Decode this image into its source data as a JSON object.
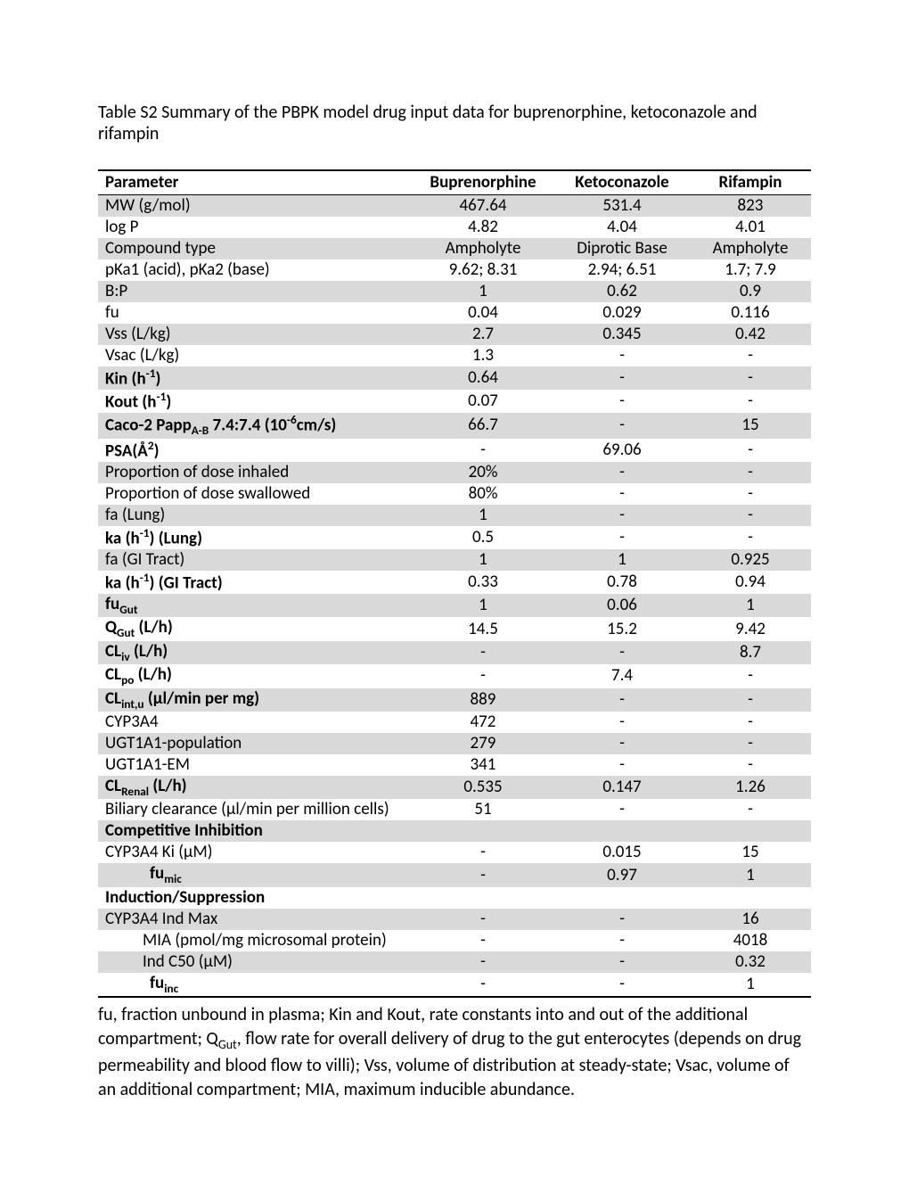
{
  "title": "Table S2 Summary of the PBPK model drug input data for buprenorphine, ketoconazole and rifampin",
  "colors": {
    "shade": "#d9d9d9",
    "border": "#000000",
    "background": "#ffffff",
    "text": "#000000"
  },
  "typography": {
    "family": "Calibri",
    "title_pt": 15,
    "body_pt": 14.5,
    "footnote_pt": 15
  },
  "columns": {
    "param": "Parameter",
    "a": "Buprenorphine",
    "b": "Ketoconazole",
    "c": "Rifampin"
  },
  "rows": [
    {
      "shaded": true,
      "bold": false,
      "indent": 0,
      "param_html": "MW (g/mol)",
      "a": "467.64",
      "b": "531.4",
      "c": "823"
    },
    {
      "shaded": false,
      "bold": false,
      "indent": 0,
      "param_html": "log P",
      "a": "4.82",
      "b": "4.04",
      "c": "4.01"
    },
    {
      "shaded": true,
      "bold": false,
      "indent": 0,
      "param_html": "Compound type",
      "a": "Ampholyte",
      "b": "Diprotic Base",
      "c": "Ampholyte"
    },
    {
      "shaded": false,
      "bold": false,
      "indent": 0,
      "param_html": "pKa1 (acid), pKa2 (base)",
      "a": "9.62; 8.31",
      "b": "2.94; 6.51",
      "c": "1.7; 7.9"
    },
    {
      "shaded": true,
      "bold": false,
      "indent": 0,
      "param_html": "B:P",
      "a": "1",
      "b": "0.62",
      "c": "0.9"
    },
    {
      "shaded": false,
      "bold": false,
      "indent": 0,
      "param_html": "fu",
      "a": "0.04",
      "b": "0.029",
      "c": "0.116"
    },
    {
      "shaded": true,
      "bold": false,
      "indent": 0,
      "param_html": "Vss (L/kg)",
      "a": "2.7",
      "b": "0.345",
      "c": "0.42"
    },
    {
      "shaded": false,
      "bold": false,
      "indent": 0,
      "param_html": "Vsac (L/kg)",
      "a": "1.3",
      "b": "-",
      "c": "-"
    },
    {
      "shaded": true,
      "bold": true,
      "indent": 0,
      "param_html": "Kin (h<sup>-1</sup>)",
      "a": "0.64",
      "b": "-",
      "c": "-"
    },
    {
      "shaded": false,
      "bold": true,
      "indent": 0,
      "param_html": "Kout (h<sup>-1</sup>)",
      "a": "0.07",
      "b": "-",
      "c": "-"
    },
    {
      "shaded": true,
      "bold": true,
      "indent": 0,
      "param_html": "Caco-2 Papp<sub>A-B</sub> 7.4:7.4 (10<sup>-6</sup>cm/s)",
      "a": "66.7",
      "b": "-",
      "c": "15"
    },
    {
      "shaded": false,
      "bold": true,
      "indent": 0,
      "param_html": "PSA(&#8491;<sup>2</sup>)",
      "a": "-",
      "b": "69.06",
      "c": "-"
    },
    {
      "shaded": true,
      "bold": false,
      "indent": 0,
      "param_html": "Proportion of dose inhaled",
      "a": "20%",
      "b": "-",
      "c": "-"
    },
    {
      "shaded": false,
      "bold": false,
      "indent": 0,
      "param_html": "Proportion of dose swallowed",
      "a": "80%",
      "b": "-",
      "c": "-"
    },
    {
      "shaded": true,
      "bold": false,
      "indent": 0,
      "param_html": "fa (Lung)",
      "a": "1",
      "b": "-",
      "c": "-"
    },
    {
      "shaded": false,
      "bold": true,
      "indent": 0,
      "param_html": "ka (h<sup>-1</sup>) (Lung)",
      "a": "0.5",
      "b": "-",
      "c": "-"
    },
    {
      "shaded": true,
      "bold": false,
      "indent": 0,
      "param_html": "fa (GI Tract)",
      "a": "1",
      "b": "1",
      "c": "0.925"
    },
    {
      "shaded": false,
      "bold": true,
      "indent": 0,
      "param_html": "ka (h<sup>-1</sup>) (GI Tract)",
      "a": "0.33",
      "b": "0.78",
      "c": "0.94"
    },
    {
      "shaded": true,
      "bold": true,
      "indent": 0,
      "param_html": "fu<sub>Gut</sub>",
      "a": "1",
      "b": "0.06",
      "c": "1"
    },
    {
      "shaded": false,
      "bold": true,
      "indent": 0,
      "param_html": "Q<sub>Gut</sub> (L/h)",
      "a": "14.5",
      "b": "15.2",
      "c": "9.42"
    },
    {
      "shaded": true,
      "bold": true,
      "indent": 0,
      "param_html": "CL<sub>iv</sub> (L/h)",
      "a": "-",
      "b": "-",
      "c": "8.7"
    },
    {
      "shaded": false,
      "bold": true,
      "indent": 0,
      "param_html": "CL<sub>po</sub> (L/h)",
      "a": "-",
      "b": "7.4",
      "c": "-"
    },
    {
      "shaded": true,
      "bold": true,
      "indent": 0,
      "param_html": "CL<sub>int,u</sub> (&micro;l/min per mg)",
      "a": "889",
      "b": "-",
      "c": "-"
    },
    {
      "shaded": false,
      "bold": false,
      "indent": 0,
      "param_html": "CYP3A4",
      "a": "472",
      "b": "-",
      "c": "-"
    },
    {
      "shaded": true,
      "bold": false,
      "indent": 0,
      "param_html": "UGT1A1-population",
      "a": "279",
      "b": "-",
      "c": "-"
    },
    {
      "shaded": false,
      "bold": false,
      "indent": 0,
      "param_html": "UGT1A1-EM",
      "a": "341",
      "b": "-",
      "c": "-"
    },
    {
      "shaded": true,
      "bold": true,
      "indent": 0,
      "param_html": "CL<sub>Renal</sub> (L/h)",
      "a": "0.535",
      "b": "0.147",
      "c": "1.26"
    },
    {
      "shaded": false,
      "bold": false,
      "indent": 0,
      "param_html": "Biliary clearance (&micro;l/min per million cells)",
      "a": "51",
      "b": "-",
      "c": "-"
    },
    {
      "shaded": true,
      "bold": true,
      "indent": 0,
      "param_html": "Competitive Inhibition",
      "a": "",
      "b": "",
      "c": ""
    },
    {
      "shaded": false,
      "bold": false,
      "indent": 0,
      "param_html": "CYP3A4 Ki (&micro;M)",
      "a": "-",
      "b": "0.015",
      "c": "15"
    },
    {
      "shaded": true,
      "bold": true,
      "indent": 2,
      "param_html": "fu<sub>mic</sub>",
      "a": "-",
      "b": "0.97",
      "c": "1"
    },
    {
      "shaded": false,
      "bold": true,
      "indent": 0,
      "param_html": "Induction/Suppression",
      "a": "",
      "b": "",
      "c": ""
    },
    {
      "shaded": true,
      "bold": false,
      "indent": 0,
      "param_html": "CYP3A4 Ind Max",
      "a": "-",
      "b": "-",
      "c": "16"
    },
    {
      "shaded": false,
      "bold": false,
      "indent": 1,
      "param_html": "MIA  (pmol/mg microsomal protein)",
      "a": "-",
      "b": "-",
      "c": "4018"
    },
    {
      "shaded": true,
      "bold": false,
      "indent": 1,
      "param_html": "Ind C50 (&micro;M)",
      "a": "-",
      "b": "-",
      "c": "0.32"
    },
    {
      "shaded": false,
      "bold": true,
      "indent": 2,
      "param_html": "fu<sub>inc</sub>",
      "a": "-",
      "b": "-",
      "c": "1"
    }
  ],
  "footnote_html": "fu, fraction unbound in plasma; Kin and Kout, rate constants into and out of the additional compartment; Q<sub>Gut</sub>, flow rate for overall delivery of drug to the gut enterocytes (depends on drug permeability and blood flow to villi); Vss, volume of distribution at steady-state; Vsac, volume of an additional compartment; MIA, maximum inducible abundance."
}
